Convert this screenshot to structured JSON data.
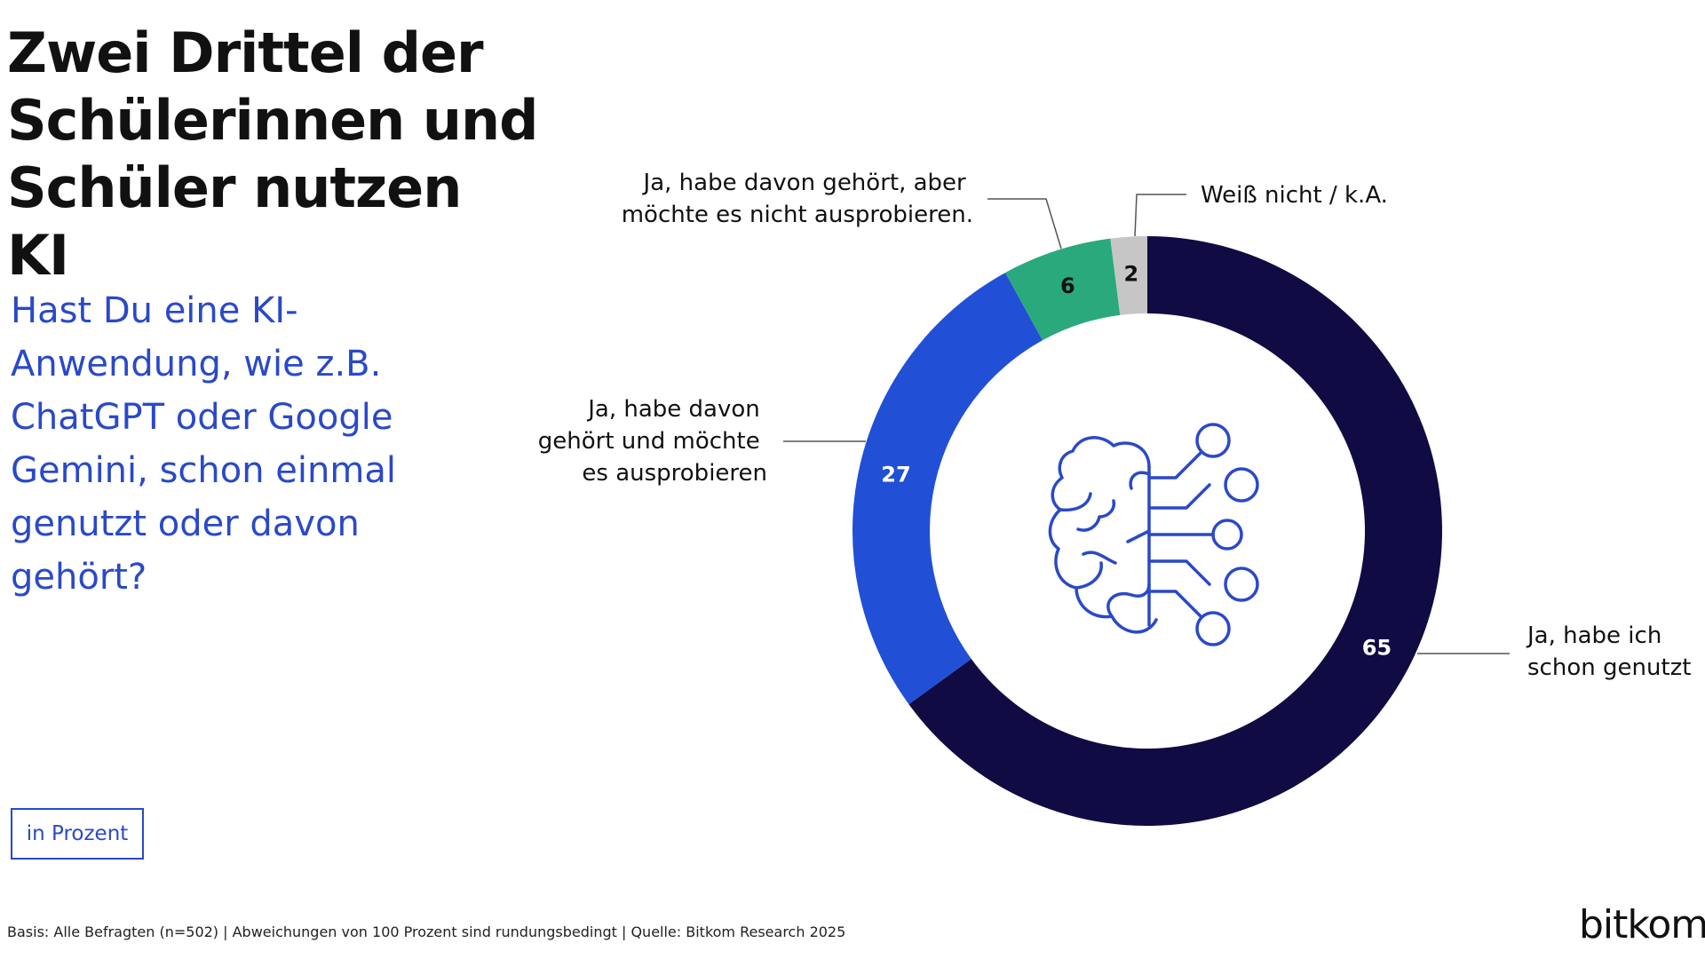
{
  "title": "Zwei Drittel der Schülerinnen und Schüler nutzen KI",
  "question": "Hast Du eine KI-Anwendung, wie z.B. ChatGPT oder Google Gemini, schon einmal genutzt oder davon gehört?",
  "unit_label": "in Prozent",
  "footnote": "Basis: Alle Befragten (n=502) | Abweichungen von 100 Prozent sind rundungsbedingt | Quelle: Bitkom Research 2025",
  "logo_text": "bitkom",
  "center_icon": "brain-circuit-icon",
  "chart_data": {
    "type": "pie",
    "variant": "donut",
    "start": "top",
    "direction": "clockwise",
    "series": [
      {
        "values": [
          65,
          27,
          6,
          2
        ],
        "categories": [
          "Ja, habe ich schon genutzt",
          "Ja, habe davon gehört und möchte es ausprobieren",
          "Ja, habe davon gehört, aber möchte es nicht ausprobieren.",
          "Weiß nicht / k.A."
        ],
        "colors": [
          "#110b43",
          "#2150d6",
          "#2aa97c",
          "#c6c6c6"
        ],
        "value_label_colors": [
          "#ffffff",
          "#ffffff",
          "#111111",
          "#111111"
        ]
      }
    ]
  }
}
